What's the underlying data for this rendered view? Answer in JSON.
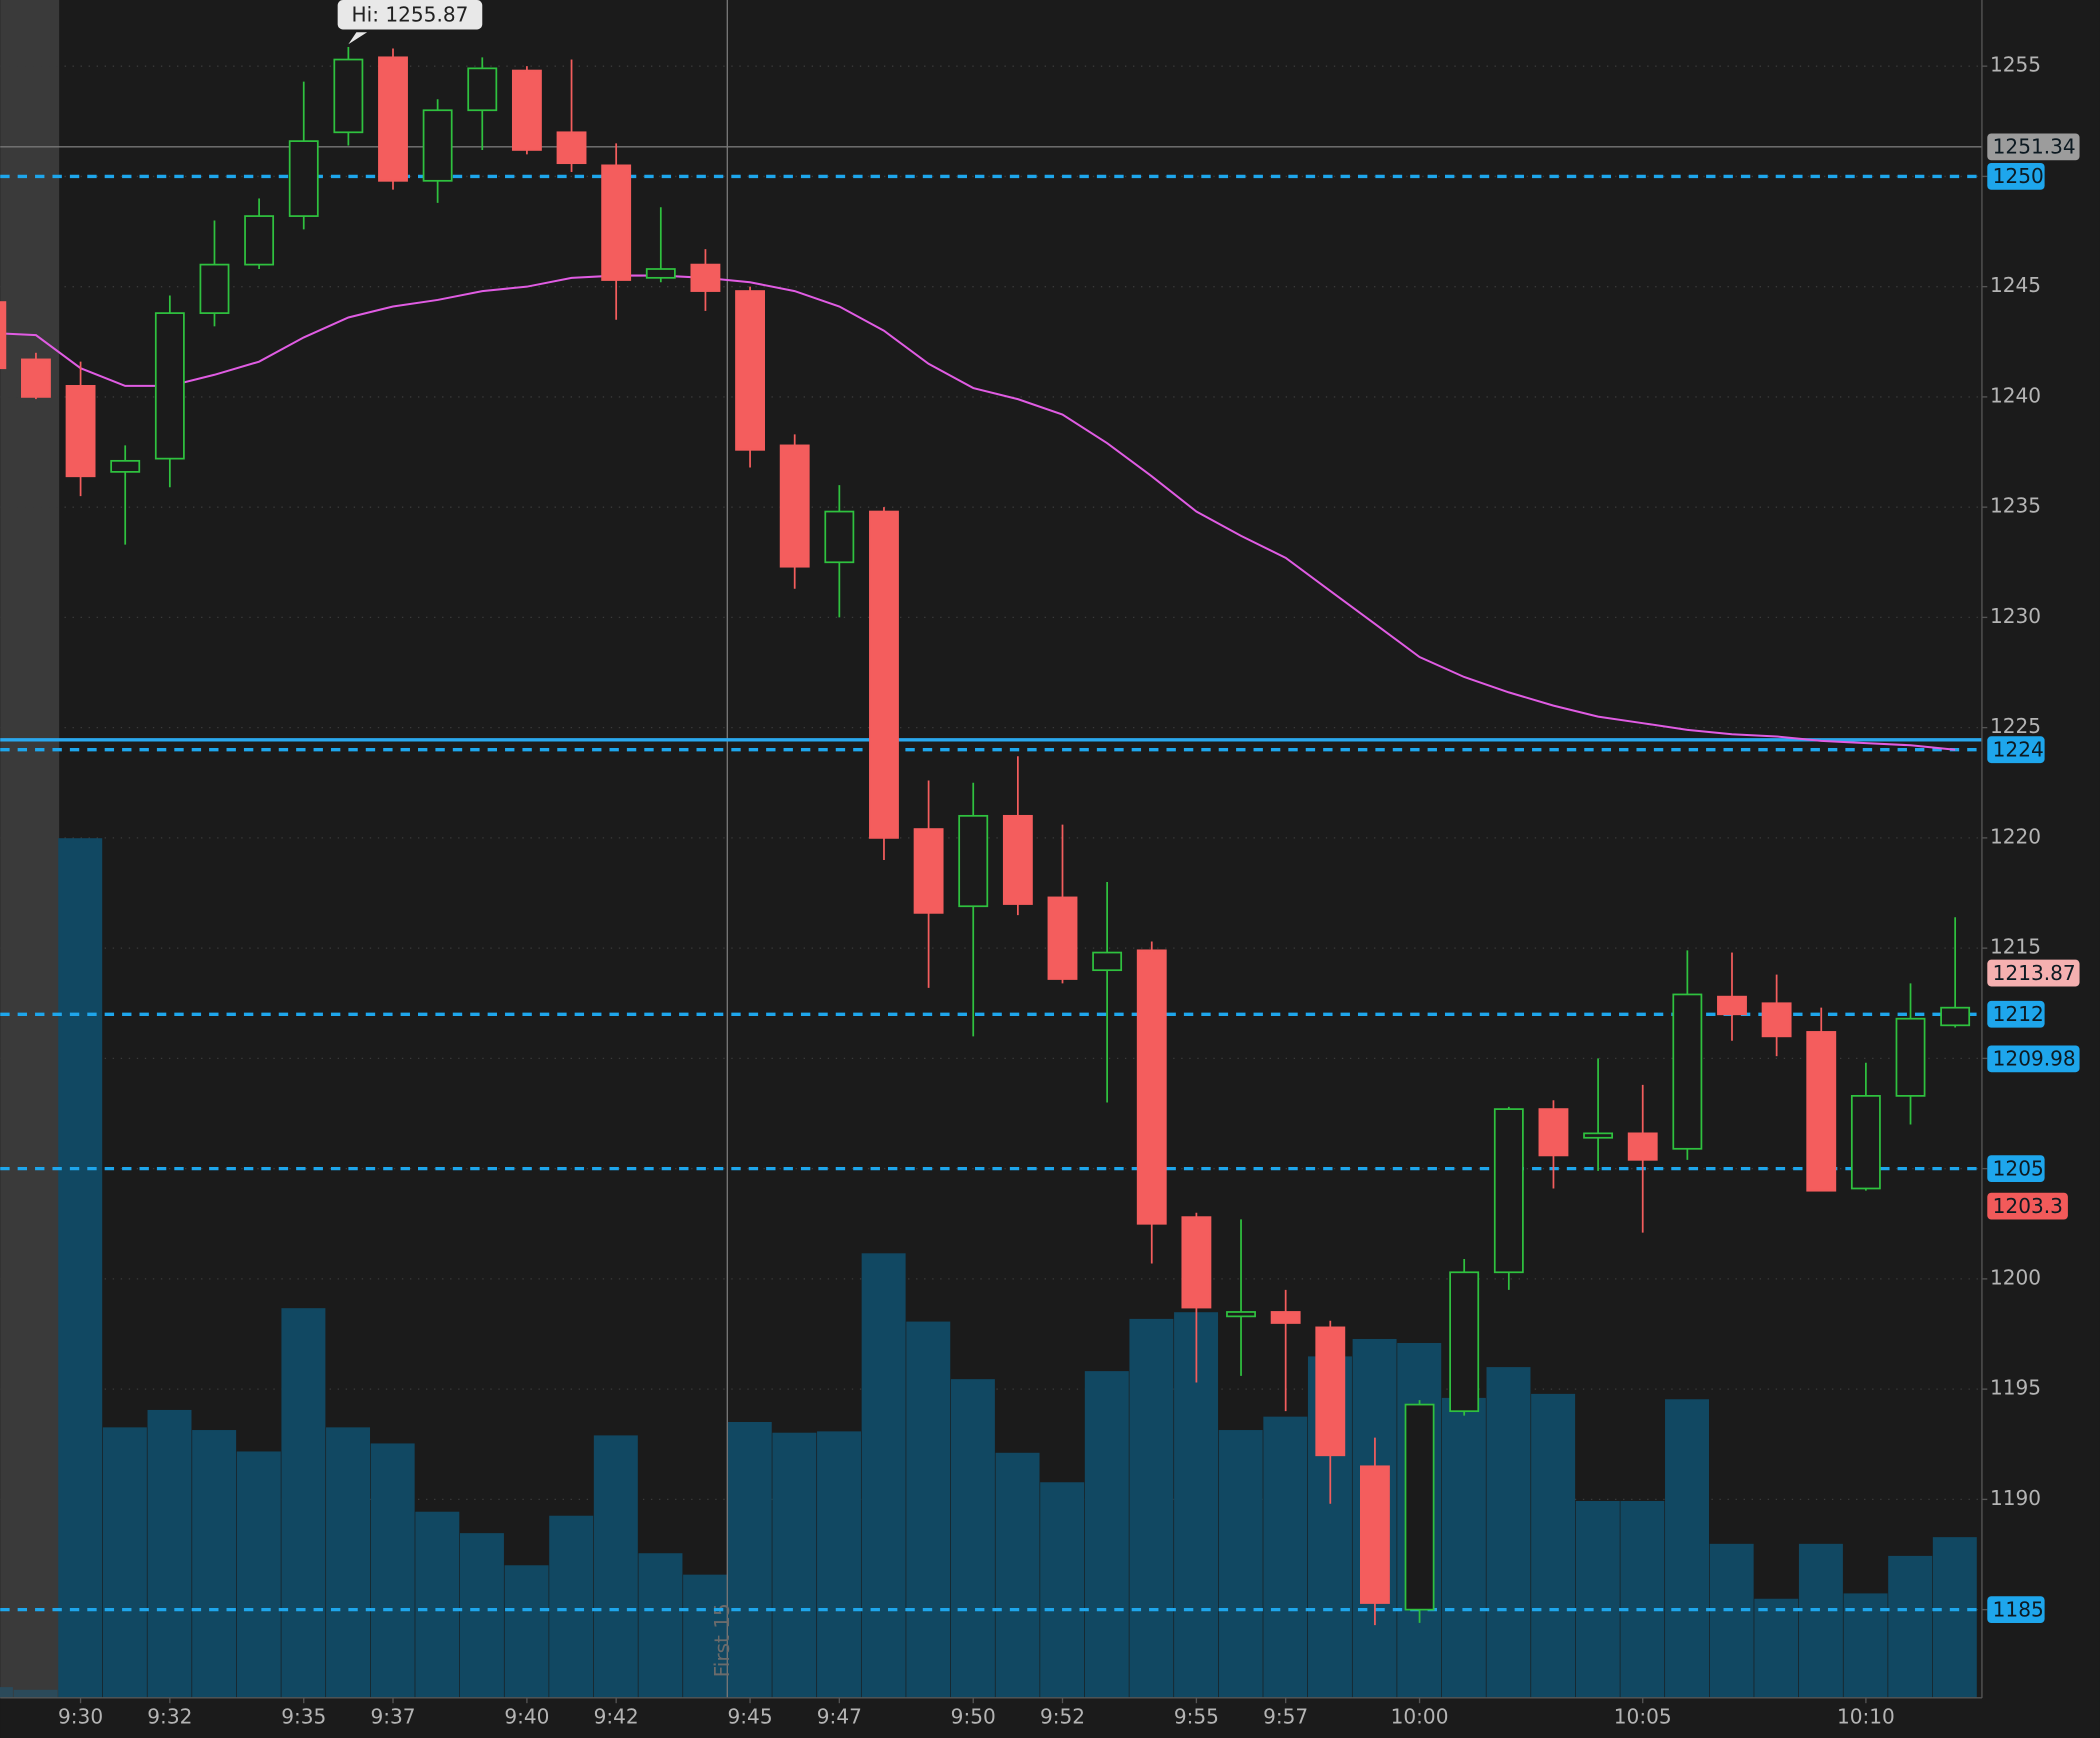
{
  "chart_data": {
    "type": "candlestick",
    "categories": [
      null,
      null,
      "9:30",
      null,
      "9:32",
      null,
      null,
      "9:35",
      null,
      "9:37",
      null,
      null,
      "9:40",
      null,
      "9:42",
      null,
      null,
      "9:45",
      null,
      "9:47",
      null,
      null,
      "9:50",
      null,
      "9:52",
      null,
      null,
      "9:55",
      null,
      "9:57",
      null,
      null,
      "10:00",
      null,
      null,
      null,
      null,
      "10:05",
      null,
      null,
      null,
      null,
      "10:10",
      null,
      null
    ],
    "open": [
      1244.3,
      1241.7,
      1240.5,
      1236.6,
      1237.2,
      1243.8,
      1246.0,
      1248.2,
      1252.0,
      1255.4,
      1249.8,
      1253.0,
      1254.8,
      1252.0,
      1250.5,
      1245.4,
      1246.0,
      1244.8,
      1237.8,
      1232.5,
      1234.8,
      1220.4,
      1216.9,
      1221.0,
      1217.3,
      1214.0,
      1214.9,
      1202.8,
      1198.3,
      1198.5,
      1197.8,
      1191.5,
      1185.0,
      1194.0,
      1200.3,
      1207.7,
      1206.4,
      1206.6,
      1205.9,
      1212.8,
      1212.5,
      1211.2,
      1204.1,
      1208.3,
      1211.5
    ],
    "high": [
      1244.6,
      1242.0,
      1241.6,
      1237.8,
      1244.6,
      1248.0,
      1249.0,
      1254.3,
      1255.87,
      1255.8,
      1253.5,
      1255.4,
      1255.0,
      1255.3,
      1251.5,
      1248.6,
      1246.7,
      1245.0,
      1238.3,
      1236.0,
      1235.0,
      1222.6,
      1222.5,
      1223.7,
      1220.6,
      1218.0,
      1215.3,
      1203.0,
      1202.7,
      1199.5,
      1198.1,
      1192.8,
      1194.5,
      1200.9,
      1207.8,
      1208.1,
      1210.0,
      1208.8,
      1214.9,
      1214.8,
      1213.8,
      1212.3,
      1209.8,
      1213.4,
      1216.4
    ],
    "low": [
      1241.0,
      1239.9,
      1235.5,
      1233.3,
      1235.9,
      1243.2,
      1245.8,
      1247.6,
      1251.4,
      1249.4,
      1248.8,
      1251.2,
      1251.0,
      1250.2,
      1243.5,
      1245.2,
      1243.9,
      1236.8,
      1231.3,
      1230.0,
      1219.0,
      1213.2,
      1211.0,
      1216.5,
      1213.4,
      1208.0,
      1200.7,
      1195.3,
      1195.6,
      1194.0,
      1189.8,
      1184.3,
      1184.4,
      1193.8,
      1199.5,
      1204.1,
      1204.9,
      1202.1,
      1205.4,
      1210.8,
      1210.1,
      1204.0,
      1204.0,
      1207.0,
      1211.4
    ],
    "close": [
      1241.3,
      1240.0,
      1236.4,
      1237.1,
      1243.8,
      1246.0,
      1248.2,
      1251.6,
      1255.3,
      1249.8,
      1253.0,
      1254.9,
      1251.2,
      1250.6,
      1245.3,
      1245.8,
      1244.8,
      1237.6,
      1232.3,
      1234.8,
      1220.0,
      1216.6,
      1221.0,
      1217.0,
      1213.6,
      1214.8,
      1202.5,
      1198.7,
      1198.5,
      1198.0,
      1192.0,
      1185.3,
      1194.3,
      1200.3,
      1207.7,
      1205.6,
      1206.6,
      1205.4,
      1212.9,
      1212.0,
      1211.0,
      1204.0,
      1208.3,
      1211.8,
      1212.3
    ],
    "volume": [
      8,
      6,
      642,
      202,
      215,
      200,
      184,
      291,
      202,
      190,
      139,
      123,
      99,
      136,
      196,
      108,
      92,
      206,
      198,
      199,
      332,
      281,
      238,
      183,
      161,
      244,
      283,
      288,
      200,
      210,
      255,
      268,
      265,
      224,
      247,
      227,
      147,
      147,
      223,
      115,
      74,
      115,
      78,
      106,
      120
    ],
    "volume_lim": [
      0,
      1268
    ],
    "up_color": "#2fc13f",
    "down_color": "#f45d5d",
    "volume_color": "#114862",
    "premarket_volume_color": "#2b4a5a",
    "moving_average": {
      "color": "#e05ce3",
      "values": [
        1242.9,
        1242.8,
        1241.3,
        1240.5,
        1240.5,
        1241.0,
        1241.6,
        1242.7,
        1243.6,
        1244.1,
        1244.4,
        1244.8,
        1245.0,
        1245.4,
        1245.5,
        1245.5,
        1245.4,
        1245.2,
        1244.8,
        1244.1,
        1243.0,
        1241.5,
        1240.4,
        1239.9,
        1239.2,
        1237.9,
        1236.4,
        1234.8,
        1233.7,
        1232.7,
        1231.2,
        1229.7,
        1228.2,
        1227.3,
        1226.6,
        1226.0,
        1225.5,
        1225.2,
        1224.9,
        1224.7,
        1224.6,
        1224.4,
        1224.3,
        1224.2,
        1224.0
      ]
    },
    "ylim": [
      1181,
      1258
    ],
    "yticks": [
      1185,
      1190,
      1195,
      1200,
      1205,
      1210,
      1215,
      1220,
      1225,
      1230,
      1235,
      1240,
      1245,
      1250,
      1255
    ],
    "grid": true,
    "hlines": [
      {
        "value": 1224.45,
        "color": "#2aa8ee"
      }
    ],
    "price_tags": [
      {
        "value": 1251.34,
        "color": "#9c9c9c",
        "line": "thin"
      },
      {
        "value": 1250,
        "color": "#1ea6ec",
        "line": "dashed"
      },
      {
        "value": 1224,
        "color": "#1ea6ec",
        "line": "dashed"
      },
      {
        "value": 1213.87,
        "color": "#f5b0b0",
        "line": "none"
      },
      {
        "value": 1212,
        "color": "#1ea6ec",
        "line": "dashed"
      },
      {
        "value": 1209.98,
        "color": "#1ea6ec",
        "line": "none"
      },
      {
        "value": 1205,
        "color": "#1ea6ec",
        "line": "dashed"
      },
      {
        "value": 1203.3,
        "color": "#f25a5a",
        "line": "none"
      },
      {
        "value": 1185,
        "color": "#1ea6ec",
        "line": "dashed"
      }
    ],
    "annotation": {
      "text": "Hi: 1255.87",
      "value": 1255.87
    },
    "vline": {
      "label": "First 15"
    }
  }
}
